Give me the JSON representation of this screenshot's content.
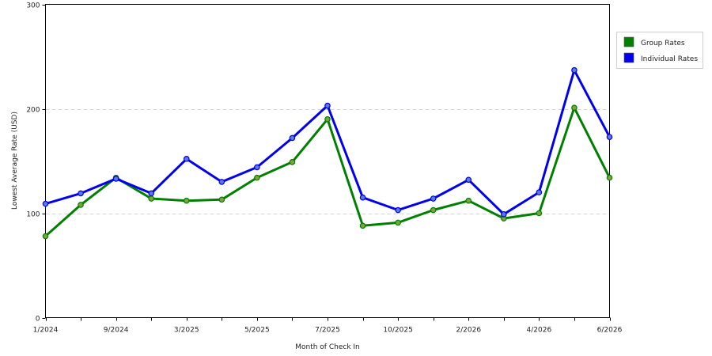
{
  "chart_data": {
    "type": "line",
    "title": "",
    "xlabel": "Month of Check In",
    "ylabel": "Lowest Average Rate (USD)",
    "ylim": [
      0,
      300
    ],
    "yticks": [
      0,
      100,
      200,
      300
    ],
    "grid": true,
    "legend_position": "top-right",
    "x_tick_labels": [
      "1/2024",
      "9/2024",
      "3/2025",
      "5/2025",
      "7/2025",
      "10/2025",
      "2/2026",
      "4/2026",
      "6/2026"
    ],
    "x_tick_index": [
      0,
      2,
      4,
      6,
      8,
      10,
      12,
      14,
      16
    ],
    "series": [
      {
        "name": "Group Rates",
        "color": "#008000",
        "values": [
          78,
          108,
          134,
          114,
          112,
          113,
          134,
          149,
          190,
          88,
          91,
          103,
          112,
          95,
          100,
          201,
          134
        ]
      },
      {
        "name": "Individual Rates",
        "color": "#0000ee",
        "values": [
          109,
          119,
          133,
          119,
          152,
          130,
          144,
          172,
          203,
          115,
          103,
          114,
          132,
          99,
          120,
          237,
          173
        ]
      }
    ]
  }
}
